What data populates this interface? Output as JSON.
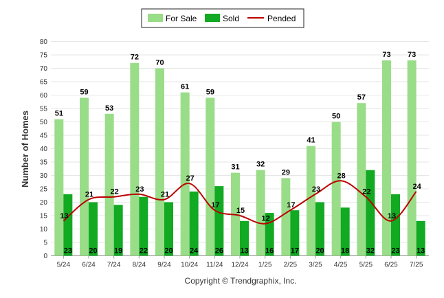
{
  "chart_data": {
    "type": "bar",
    "categories": [
      "5/24",
      "6/24",
      "7/24",
      "8/24",
      "9/24",
      "10/24",
      "11/24",
      "12/24",
      "1/25",
      "2/25",
      "3/25",
      "4/25",
      "5/25",
      "6/25",
      "7/25"
    ],
    "series": [
      {
        "name": "For Sale",
        "type": "bar",
        "color": "#99dd88",
        "values": [
          51,
          59,
          53,
          72,
          70,
          61,
          59,
          31,
          32,
          29,
          41,
          50,
          57,
          73,
          73
        ]
      },
      {
        "name": "Sold",
        "type": "bar",
        "color": "#11aa22",
        "values": [
          23,
          20,
          19,
          22,
          20,
          24,
          26,
          13,
          16,
          17,
          20,
          18,
          32,
          23,
          13
        ]
      },
      {
        "name": "Pended",
        "type": "line",
        "color": "#bb0000",
        "values": [
          13,
          21,
          22,
          23,
          21,
          27,
          17,
          15,
          12,
          17,
          23,
          28,
          22,
          13,
          24
        ]
      }
    ],
    "ylabel": "Number of Homes",
    "xlabel": "",
    "ylim": [
      0,
      80
    ],
    "yticks": [
      0,
      5,
      10,
      15,
      20,
      25,
      30,
      35,
      40,
      45,
      50,
      55,
      60,
      65,
      70,
      75,
      80
    ],
    "grid": true,
    "legend_position": "top-center"
  },
  "footer": {
    "copyright": "Copyright © Trendgraphix, Inc."
  }
}
